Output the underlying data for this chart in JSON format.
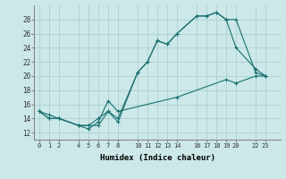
{
  "xlabel": "Humidex (Indice chaleur)",
  "bg_color": "#cce8e8",
  "line_color": "#1a7070",
  "grid_color": "#b0d4d4",
  "xticks": [
    0,
    1,
    2,
    4,
    5,
    6,
    7,
    8,
    10,
    11,
    12,
    13,
    14,
    16,
    17,
    18,
    19,
    20,
    22,
    23
  ],
  "yticks": [
    12,
    14,
    16,
    18,
    20,
    22,
    24,
    26,
    28
  ],
  "xlim": [
    -0.5,
    24.5
  ],
  "ylim": [
    11.0,
    30.0
  ],
  "line1_x": [
    0,
    1,
    2,
    4,
    5,
    6,
    7,
    8,
    10,
    11,
    12,
    13,
    14,
    16,
    17,
    18,
    19,
    20,
    22,
    23
  ],
  "line1_y": [
    15,
    14,
    14,
    13,
    13,
    14,
    15,
    14,
    20.5,
    22,
    25,
    24.5,
    26,
    28.5,
    28.5,
    29,
    28,
    28,
    20.5,
    20
  ],
  "line2_x": [
    0,
    1,
    2,
    4,
    5,
    6,
    7,
    8,
    10,
    11,
    12,
    13,
    14,
    16,
    17,
    18,
    19,
    20,
    22,
    23
  ],
  "line2_y": [
    15,
    14,
    14,
    13,
    13,
    13,
    15,
    13.5,
    20.5,
    22,
    25,
    24.5,
    26,
    28.5,
    28.5,
    29,
    28,
    24,
    21,
    20
  ],
  "line3_x": [
    0,
    1,
    2,
    4,
    5,
    6,
    7,
    8,
    14,
    19,
    20,
    22,
    23
  ],
  "line3_y": [
    15,
    14.5,
    14,
    13,
    12.5,
    13.5,
    16.5,
    15,
    17,
    19.5,
    19,
    20,
    20
  ]
}
